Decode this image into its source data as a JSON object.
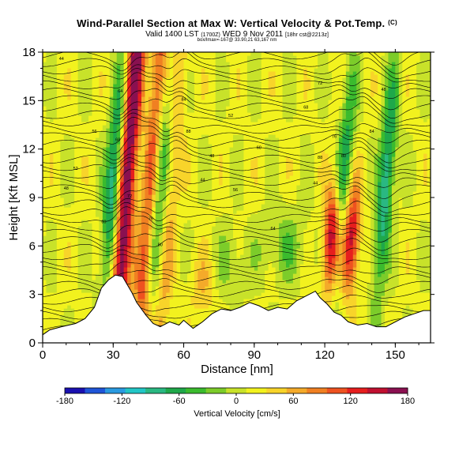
{
  "header": {
    "title": "Wind-Parallel Section at Max W: Vertical Velocity & Pot.Temp.",
    "copyright": "(C)",
    "valid_line": "Valid 1400 LST",
    "valid_utc": "(1700Z)",
    "valid_date": "WED 9 Nov 2011",
    "run_info": "[18hr cst@2213z]",
    "footer_info": "box/lmax=-167@ 33.90,21 63,167 nm"
  },
  "chart_data": {
    "type": "heatmap",
    "title": "Wind-Parallel Section at Max W: Vertical Velocity & Pot.Temp.",
    "xlabel": "Distance [nm]",
    "ylabel": "Height [Kft MSL]",
    "xlim": [
      0,
      165
    ],
    "ylim": [
      0,
      18
    ],
    "xticks": [
      0,
      30,
      60,
      90,
      120,
      150
    ],
    "yticks": [
      0,
      3,
      6,
      9,
      12,
      15,
      18
    ],
    "colorbar": {
      "label": "Vertical Velocity [cm/s]",
      "range": [
        -180,
        180
      ],
      "tick_values": [
        -180,
        -120,
        -60,
        0,
        60,
        120,
        180
      ],
      "colors": [
        "#1a10b0",
        "#1f55d8",
        "#2a9ae0",
        "#22c6c6",
        "#2ab882",
        "#1fa84a",
        "#3bbb2e",
        "#7ccc2a",
        "#c8e22a",
        "#f2f21e",
        "#f8d42a",
        "#f4aa2a",
        "#f08022",
        "#ee5220",
        "#e61e1e",
        "#c01030",
        "#8a1050"
      ]
    },
    "terrain_kft": [
      [
        0,
        0.5
      ],
      [
        3,
        0.8
      ],
      [
        8,
        1.0
      ],
      [
        14,
        1.2
      ],
      [
        18,
        1.5
      ],
      [
        22,
        2.2
      ],
      [
        25,
        3.4
      ],
      [
        28,
        3.9
      ],
      [
        31,
        4.2
      ],
      [
        34,
        4.1
      ],
      [
        36,
        3.6
      ],
      [
        38,
        3.1
      ],
      [
        40,
        2.5
      ],
      [
        44,
        1.7
      ],
      [
        47,
        1.2
      ],
      [
        50,
        1.0
      ],
      [
        54,
        1.3
      ],
      [
        58,
        1.1
      ],
      [
        60,
        1.4
      ],
      [
        64,
        0.9
      ],
      [
        68,
        1.3
      ],
      [
        72,
        1.8
      ],
      [
        76,
        2.1
      ],
      [
        80,
        2.0
      ],
      [
        84,
        2.2
      ],
      [
        88,
        2.5
      ],
      [
        92,
        2.3
      ],
      [
        96,
        2.0
      ],
      [
        100,
        2.2
      ],
      [
        104,
        2.1
      ],
      [
        108,
        2.6
      ],
      [
        112,
        2.9
      ],
      [
        116,
        3.2
      ],
      [
        118,
        2.8
      ],
      [
        121,
        2.4
      ],
      [
        124,
        1.9
      ],
      [
        127,
        1.7
      ],
      [
        130,
        1.3
      ],
      [
        134,
        1.1
      ],
      [
        138,
        1.2
      ],
      [
        142,
        1.0
      ],
      [
        146,
        1.0
      ],
      [
        150,
        1.3
      ],
      [
        154,
        1.6
      ],
      [
        158,
        1.8
      ],
      [
        162,
        2.0
      ],
      [
        165,
        2.0
      ]
    ],
    "updraft_bands": [
      {
        "name": "updraft-1",
        "x_center_nm": 34,
        "w_max_cms": 170
      },
      {
        "name": "updraft-2",
        "x_center_nm": 44,
        "w_max_cms": 90
      },
      {
        "name": "updraft-3",
        "x_center_nm": 53,
        "w_max_cms": 40
      },
      {
        "name": "updraft-4",
        "x_center_nm": 123,
        "w_max_cms": 160
      },
      {
        "name": "updraft-5",
        "x_center_nm": 131,
        "w_max_cms": 140
      }
    ],
    "downdraft_bands": [
      {
        "name": "downdraft-1",
        "x_center_nm": 28,
        "w_min_cms": -110
      },
      {
        "name": "downdraft-2",
        "x_center_nm": 48,
        "w_min_cms": -80
      },
      {
        "name": "downdraft-3",
        "x_center_nm": 126,
        "w_min_cms": -90
      },
      {
        "name": "downdraft-4",
        "x_center_nm": 144,
        "w_min_cms": -110
      }
    ],
    "isentrope_labels": [
      "44",
      "48",
      "52",
      "56",
      "60",
      "64",
      "68",
      "72",
      "76",
      "80",
      "84",
      "88"
    ]
  }
}
